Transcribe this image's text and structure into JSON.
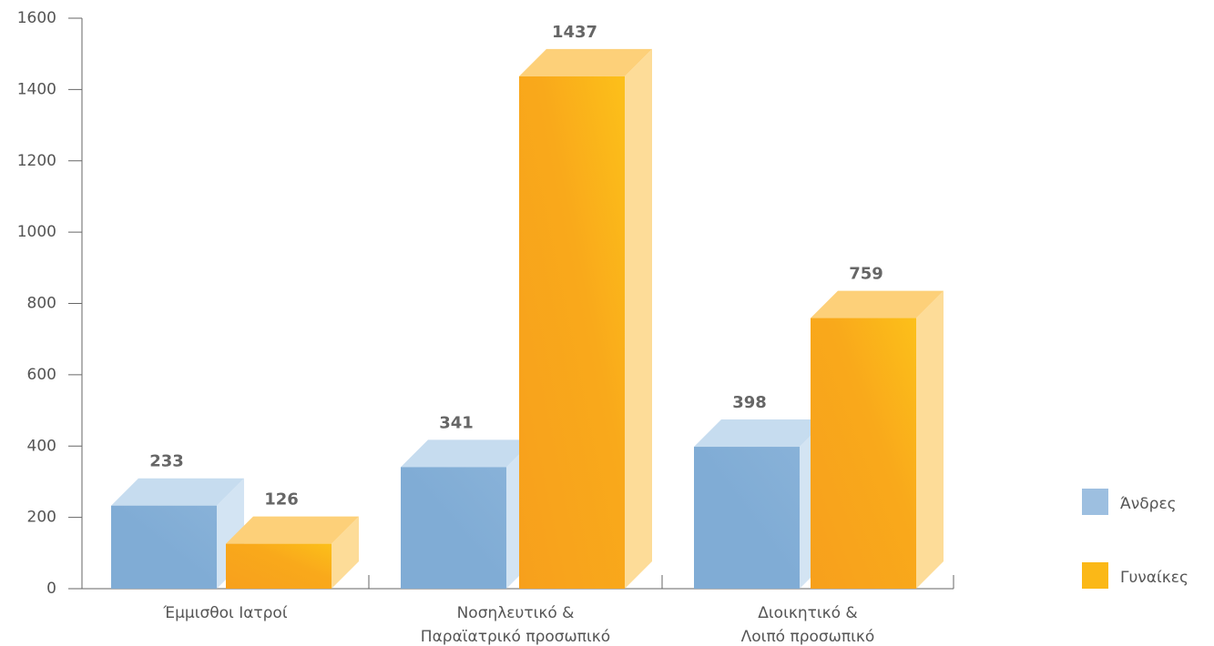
{
  "chart_data": {
    "type": "bar3d",
    "categories": [
      [
        "Έμμισθοι Ιατροί"
      ],
      [
        "Νοσηλευτικό &",
        "Παραϊατρικό προσωπικό"
      ],
      [
        "Διοικητικό &",
        "Λοιπό προσωπικό"
      ]
    ],
    "series": [
      {
        "name": "Άνδρες",
        "color": "#8ab3d9",
        "values": [
          233,
          341,
          398
        ]
      },
      {
        "name": "Γυναίκες",
        "color": "#f8a51d",
        "values": [
          126,
          1437,
          759
        ]
      }
    ],
    "ylim": [
      0,
      1600
    ],
    "yticks": [
      0,
      200,
      400,
      600,
      800,
      1000,
      1200,
      1400,
      1600
    ],
    "legend": "right"
  }
}
